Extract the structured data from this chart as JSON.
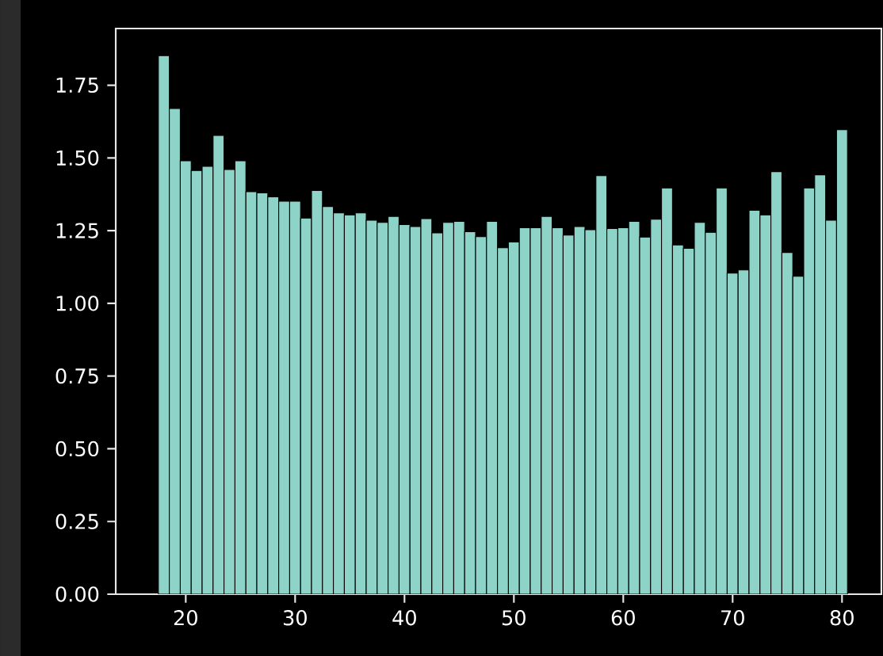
{
  "chart_data": {
    "type": "bar",
    "color": "#8dd3c7",
    "x": [
      18,
      19,
      20,
      21,
      22,
      23,
      24,
      25,
      26,
      27,
      28,
      29,
      30,
      31,
      32,
      33,
      34,
      35,
      36,
      37,
      38,
      39,
      40,
      41,
      42,
      43,
      44,
      45,
      46,
      47,
      48,
      49,
      50,
      51,
      52,
      53,
      54,
      55,
      56,
      57,
      58,
      59,
      60,
      61,
      62,
      63,
      64,
      65,
      66,
      67,
      68,
      69,
      70,
      71,
      72,
      73,
      74,
      75,
      76,
      77,
      78,
      79,
      80
    ],
    "values": [
      1.852,
      1.67,
      1.49,
      1.457,
      1.471,
      1.577,
      1.46,
      1.49,
      1.384,
      1.38,
      1.366,
      1.351,
      1.351,
      1.293,
      1.388,
      1.333,
      1.311,
      1.304,
      1.311,
      1.286,
      1.278,
      1.299,
      1.271,
      1.264,
      1.291,
      1.242,
      1.278,
      1.282,
      1.246,
      1.229,
      1.282,
      1.191,
      1.211,
      1.26,
      1.26,
      1.299,
      1.26,
      1.235,
      1.264,
      1.253,
      1.439,
      1.257,
      1.26,
      1.282,
      1.228,
      1.289,
      1.397,
      1.201,
      1.189,
      1.278,
      1.244,
      1.397,
      1.104,
      1.115,
      1.32,
      1.304,
      1.453,
      1.175,
      1.093,
      1.397,
      1.442,
      1.286,
      1.597
    ],
    "xlim": [
      13.6,
      83.6
    ],
    "ylim": [
      0,
      1.945
    ],
    "xticks": [
      20,
      30,
      40,
      50,
      60,
      70,
      80
    ],
    "yticks": [
      {
        "value": 0,
        "label": "0.00"
      },
      {
        "value": 0.25,
        "label": "0.25"
      },
      {
        "value": 0.5,
        "label": "0.50"
      },
      {
        "value": 0.75,
        "label": "0.75"
      },
      {
        "value": 1,
        "label": "1.00"
      },
      {
        "value": 1.25,
        "label": "1.25"
      },
      {
        "value": 1.5,
        "label": "1.50"
      },
      {
        "value": 1.75,
        "label": "1.75"
      }
    ]
  }
}
